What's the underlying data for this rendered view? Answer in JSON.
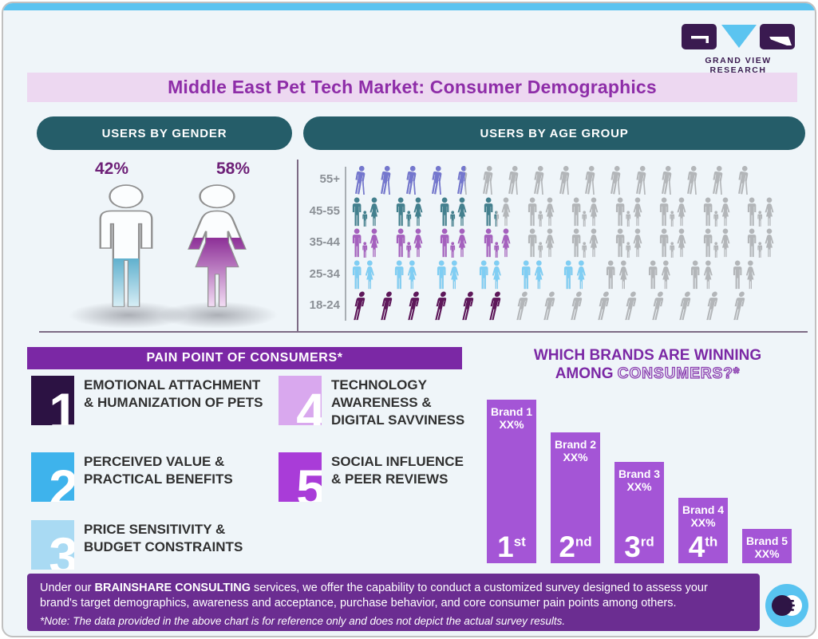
{
  "brand": {
    "logo_text": "GRAND VIEW RESEARCH"
  },
  "title": "Middle East Pet Tech Market: Consumer Demographics",
  "gender_section": {
    "header": "USERS BY GENDER",
    "male_label": "42%",
    "male_pct": 42,
    "male_color": "#3D9EC2",
    "female_label": "58%",
    "female_pct": 58,
    "female_color": "#8F3399"
  },
  "age_section": {
    "header": "USERS BY AGE GROUP",
    "rows": [
      {
        "label": "55+",
        "icon": "elderly-cane",
        "count": 16,
        "colored_pct": 25,
        "color": "#7477CE"
      },
      {
        "label": "45-55",
        "icon": "family",
        "count": 10,
        "colored_pct": 32,
        "color": "#43808E"
      },
      {
        "label": "35-44",
        "icon": "family",
        "count": 10,
        "colored_pct": 38,
        "color": "#A561BE"
      },
      {
        "label": "25-34",
        "icon": "couple",
        "count": 10,
        "colored_pct": 56,
        "color": "#7FCEF4"
      },
      {
        "label": "18-24",
        "icon": "walker",
        "count": 15,
        "colored_pct": 33,
        "color": "#5E175A"
      }
    ],
    "gray_color": "#B3B6B9"
  },
  "pain_points": {
    "header": "PAIN POINT OF CONSUMERS*",
    "items": [
      {
        "num": "1",
        "tile_color": "#2C1243",
        "line1": "EMOTIONAL ATTACHMENT",
        "line2": "& HUMANIZATION OF PETS",
        "line3": ""
      },
      {
        "num": "2",
        "tile_color": "#3EB3EC",
        "line1": "PERCEIVED VALUE &",
        "line2": "PRACTICAL BENEFITS",
        "line3": ""
      },
      {
        "num": "3",
        "tile_color": "#A9DAF3",
        "line1": "PRICE SENSITIVITY &",
        "line2": "BUDGET CONSTRAINTS",
        "line3": ""
      },
      {
        "num": "4",
        "tile_color": "#D9A8EE",
        "line1": "TECHNOLOGY",
        "line2": "AWARENESS &",
        "line3": "DIGITAL SAVVINESS"
      },
      {
        "num": "5",
        "tile_color": "#A93CD8",
        "line1": "SOCIAL INFLUENCE",
        "line2": "& PEER REVIEWS",
        "line3": ""
      }
    ]
  },
  "brands_chart": {
    "title_line1": "WHICH BRANDS ARE WINNING",
    "title_line2_solid": "AMONG",
    "title_line2_outline": "CONSUMERS?*",
    "bar_color": "#A455D6",
    "bars": [
      {
        "name": "Brand 1",
        "value": "XX%",
        "rank_num": "1",
        "rank_suffix": "st",
        "height_pct": 100
      },
      {
        "name": "Brand 2",
        "value": "XX%",
        "rank_num": "2",
        "rank_suffix": "nd",
        "height_pct": 80
      },
      {
        "name": "Brand 3",
        "value": "XX%",
        "rank_num": "3",
        "rank_suffix": "rd",
        "height_pct": 62
      },
      {
        "name": "Brand 4",
        "value": "XX%",
        "rank_num": "4",
        "rank_suffix": "th",
        "height_pct": 40
      },
      {
        "name": "Brand 5",
        "value": "XX%",
        "rank_num": "",
        "rank_suffix": "",
        "height_pct": 21
      }
    ]
  },
  "footer": {
    "para_prefix": "Under our ",
    "para_bold": "BRAINSHARE CONSULTING",
    "para_rest": " services, we offer the capability to conduct a customized survey designed to assess your brand's target demographics, awareness and acceptance, purchase behavior, and core consumer pain points among others.",
    "note": "*Note: The data provided in the above chart is for reference only and does not depict the actual survey results."
  },
  "chart_data": [
    {
      "type": "bar",
      "subtype": "pictogram-fill",
      "title": "USERS BY GENDER",
      "categories": [
        "Male",
        "Female"
      ],
      "values": [
        42,
        58
      ],
      "unit": "%",
      "colors": [
        "#3D9EC2",
        "#8F3399"
      ]
    },
    {
      "type": "bar",
      "subtype": "pictogram-rows",
      "title": "USERS BY AGE GROUP",
      "categories": [
        "55+",
        "45-55",
        "35-44",
        "25-34",
        "18-24"
      ],
      "values": [
        25,
        32,
        38,
        56,
        33
      ],
      "values_note": "no numeric labels shown; values estimated from fraction of colored icons per row",
      "icon_totals": [
        16,
        10,
        10,
        10,
        15
      ],
      "colors": [
        "#7477CE",
        "#43808E",
        "#A561BE",
        "#7FCEF4",
        "#5E175A"
      ]
    },
    {
      "type": "bar",
      "title": "WHICH BRANDS ARE WINNING AMONG CONSUMERS?*",
      "categories": [
        "Brand 1",
        "Brand 2",
        "Brand 3",
        "Brand 4",
        "Brand 5"
      ],
      "value_labels": [
        "XX%",
        "XX%",
        "XX%",
        "XX%",
        "XX%"
      ],
      "ranks": [
        "1st",
        "2nd",
        "3rd",
        "4th",
        ""
      ],
      "relative_heights_pct": [
        100,
        80,
        62,
        40,
        21
      ],
      "ylabel": "",
      "xlabel": "",
      "legend": "none",
      "note": "placeholder values; heights indicate ranking only"
    }
  ]
}
